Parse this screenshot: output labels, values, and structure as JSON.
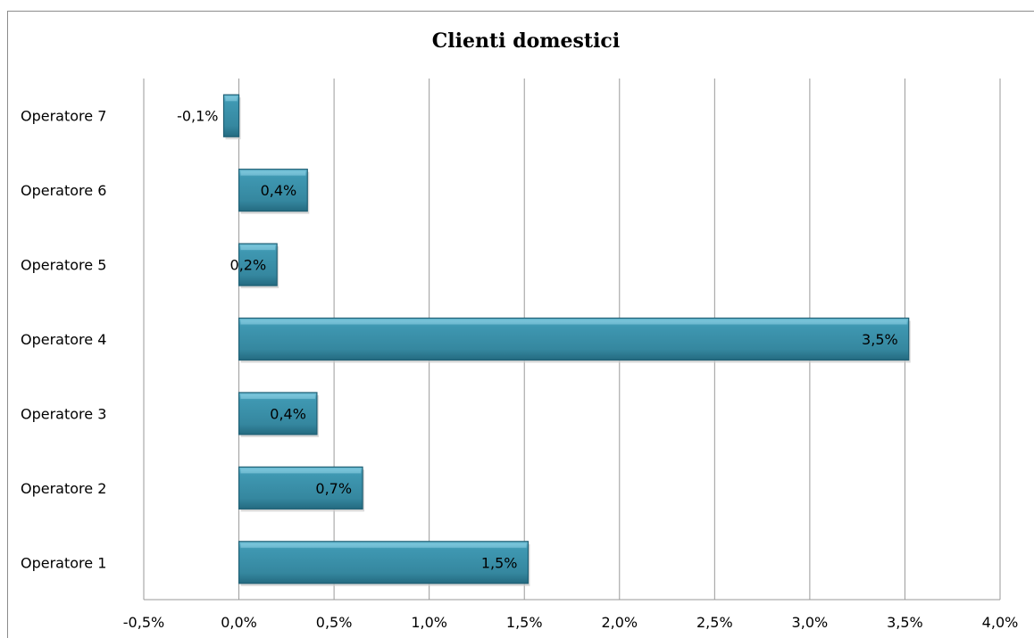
{
  "chart_data": {
    "type": "bar",
    "orientation": "horizontal",
    "title": "Clienti domestici",
    "categories": [
      "Operatore 1",
      "Operatore 2",
      "Operatore 3",
      "Operatore 4",
      "Operatore 5",
      "Operatore 6",
      "Operatore 7"
    ],
    "values": [
      1.52,
      0.65,
      0.41,
      3.52,
      0.2,
      0.36,
      -0.08
    ],
    "data_labels": [
      "1,5%",
      "0,7%",
      "0,4%",
      "3,5%",
      "0,2%",
      "0,4%",
      "-0,1%"
    ],
    "x_ticks": [
      "-0,5%",
      "0,0%",
      "0,5%",
      "1,0%",
      "1,5%",
      "2,0%",
      "2,5%",
      "3,0%",
      "3,5%",
      "4,0%"
    ],
    "xlim": [
      -0.5,
      4.0
    ],
    "x_unit": "%",
    "grid": "vertical",
    "legend": "none",
    "bar_color": "#3a8ea8",
    "bar_edge_color": "#1f5f74"
  }
}
